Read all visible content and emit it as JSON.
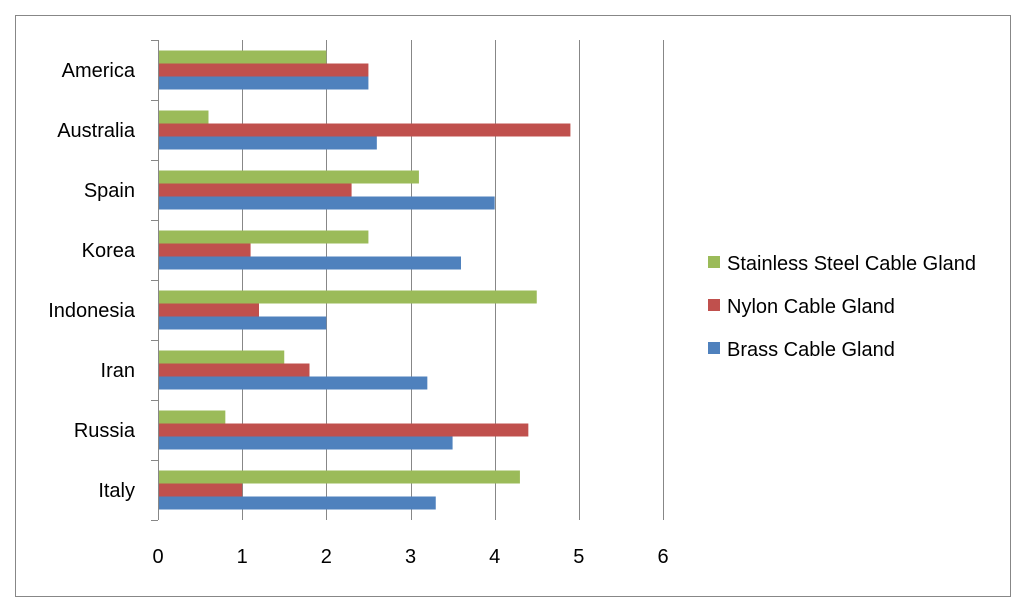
{
  "chart_data": {
    "type": "bar",
    "orientation": "horizontal",
    "categories": [
      "Italy",
      "Russia",
      "Iran",
      "Indonesia",
      "Korea",
      "Spain",
      "Australia",
      "America"
    ],
    "series": [
      {
        "name": "Brass Cable Gland",
        "color": "#4F81BD",
        "values": [
          3.3,
          3.5,
          3.2,
          2.0,
          3.6,
          4.0,
          2.6,
          2.5
        ]
      },
      {
        "name": "Nylon Cable Gland",
        "color": "#C0504D",
        "values": [
          1.0,
          4.4,
          1.8,
          1.2,
          1.1,
          2.3,
          4.9,
          2.5
        ]
      },
      {
        "name": "Stainless Steel Cable Gland",
        "color": "#9BBB59",
        "values": [
          4.3,
          0.8,
          1.5,
          4.5,
          2.5,
          3.1,
          0.6,
          2.0
        ]
      }
    ],
    "legend_order": [
      "Stainless Steel Cable Gland",
      "Nylon Cable Gland",
      "Brass Cable Gland"
    ],
    "xlim": [
      0,
      6
    ],
    "xticks": [
      "0",
      "1",
      "2",
      "3",
      "4",
      "5",
      "6"
    ],
    "grid": "vertical",
    "legend_position": "right",
    "title": "",
    "xlabel": "",
    "ylabel": ""
  }
}
